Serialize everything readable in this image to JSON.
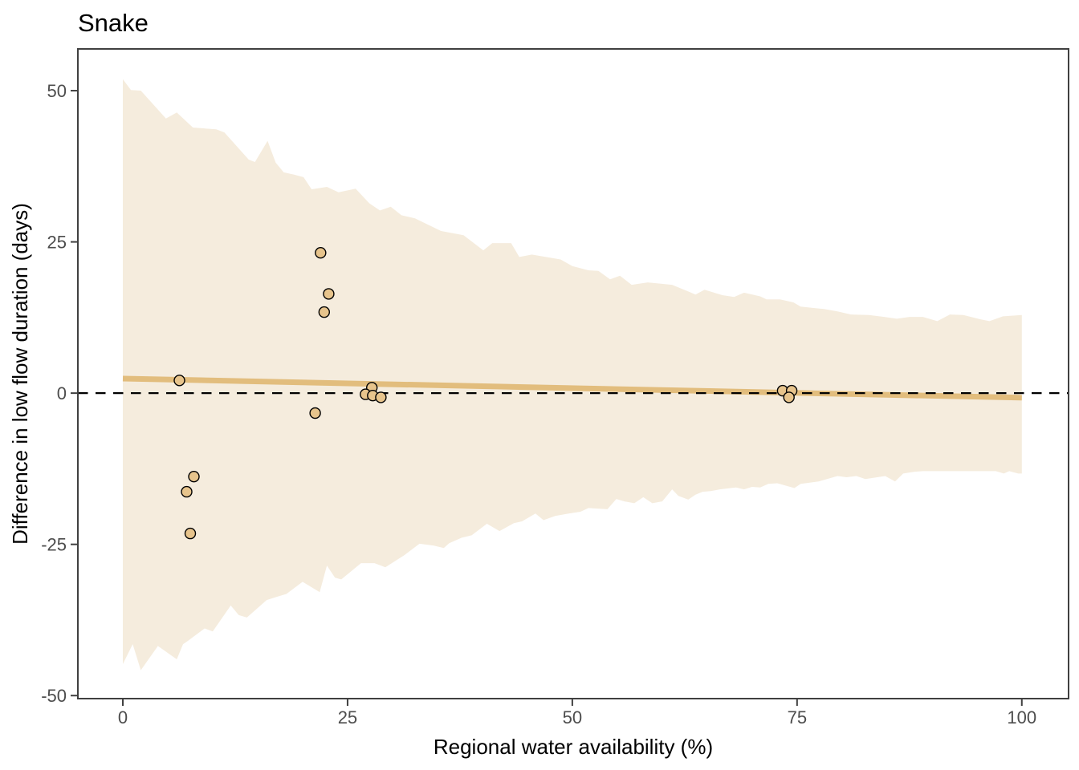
{
  "chart_data": {
    "type": "scatter",
    "title": "Snake",
    "xlabel": "Regional water availability (%)",
    "ylabel": "Difference in low flow duration (days)",
    "x_ticks": [
      0,
      25,
      50,
      75,
      100
    ],
    "y_ticks": [
      -50,
      -25,
      0,
      25,
      50
    ],
    "xlim": [
      -5,
      105.2
    ],
    "ylim": [
      -50.5,
      56.9
    ],
    "grid": "off",
    "legend": "none",
    "colors": {
      "band_fill": "#f5ecdd",
      "trend_line": "#e2bd7d",
      "point_fill": "#e7c48c",
      "point_outline": "#000000",
      "zero_line": "#000000",
      "axis_text": "#4d4d4d",
      "panel_border": "#404040"
    },
    "zero_reference_line": {
      "y": 0,
      "style": "dashed"
    },
    "trend_line": {
      "x": [
        0,
        100
      ],
      "y": [
        2.4,
        -0.75
      ]
    },
    "confidence_band": {
      "upper": [
        [
          0,
          51.9
        ],
        [
          0.9,
          50.1
        ],
        [
          2,
          50
        ],
        [
          4.8,
          45.4
        ],
        [
          6,
          46.4
        ],
        [
          7.8,
          43.9
        ],
        [
          10.4,
          43.6
        ],
        [
          11.3,
          43.1
        ],
        [
          14,
          38.6
        ],
        [
          14.7,
          38.2
        ],
        [
          16.1,
          41.7
        ],
        [
          17,
          38.1
        ],
        [
          17.9,
          36.5
        ],
        [
          19.1,
          36.1
        ],
        [
          20.1,
          35.7
        ],
        [
          21,
          33.7
        ],
        [
          22.7,
          34.1
        ],
        [
          24,
          33.2
        ],
        [
          25.9,
          33.8
        ],
        [
          27.4,
          31.4
        ],
        [
          28.6,
          30.2
        ],
        [
          29.8,
          30.8
        ],
        [
          31,
          29.4
        ],
        [
          32.5,
          28.9
        ],
        [
          35.4,
          26.8
        ],
        [
          37.9,
          26.1
        ],
        [
          40.1,
          23.6
        ],
        [
          41.1,
          24.8
        ],
        [
          43.2,
          24.8
        ],
        [
          44.1,
          22.5
        ],
        [
          45.5,
          22.9
        ],
        [
          48.7,
          22.1
        ],
        [
          50,
          21
        ],
        [
          51.8,
          20.3
        ],
        [
          52.9,
          20.2
        ],
        [
          54.2,
          18.8
        ],
        [
          55.3,
          19.4
        ],
        [
          56.6,
          17.9
        ],
        [
          58.4,
          18.3
        ],
        [
          61.1,
          17.9
        ],
        [
          62.9,
          16.8
        ],
        [
          63.7,
          16.3
        ],
        [
          64.7,
          17.1
        ],
        [
          66.7,
          16.2
        ],
        [
          68,
          15.9
        ],
        [
          69.1,
          16.6
        ],
        [
          70.9,
          16
        ],
        [
          71.6,
          15.5
        ],
        [
          73.1,
          15.5
        ],
        [
          74.6,
          15
        ],
        [
          75.4,
          14.3
        ],
        [
          78,
          13.9
        ],
        [
          79.5,
          13.5
        ],
        [
          81,
          13
        ],
        [
          83,
          12.9
        ],
        [
          84.7,
          12.6
        ],
        [
          86.1,
          12.3
        ],
        [
          87.5,
          12.6
        ],
        [
          89,
          12.6
        ],
        [
          90.6,
          11.9
        ],
        [
          92,
          13
        ],
        [
          93.5,
          12.9
        ],
        [
          95.4,
          12.2
        ],
        [
          96.4,
          11.9
        ],
        [
          97.9,
          12.7
        ],
        [
          100,
          12.9
        ]
      ],
      "lower": [
        [
          0,
          -44.8
        ],
        [
          1.1,
          -41.5
        ],
        [
          2,
          -45.8
        ],
        [
          3.9,
          -41.8
        ],
        [
          6,
          -44
        ],
        [
          6.7,
          -41.5
        ],
        [
          7.1,
          -41.1
        ],
        [
          9.1,
          -38.9
        ],
        [
          10,
          -39.4
        ],
        [
          12,
          -35.1
        ],
        [
          12.9,
          -36.7
        ],
        [
          13.8,
          -37.1
        ],
        [
          16,
          -34.2
        ],
        [
          17.3,
          -33.6
        ],
        [
          18.2,
          -33.2
        ],
        [
          20,
          -31.2
        ],
        [
          21.9,
          -32.9
        ],
        [
          22.7,
          -28.5
        ],
        [
          23.6,
          -30.5
        ],
        [
          24.3,
          -30.8
        ],
        [
          26.5,
          -28.1
        ],
        [
          28,
          -28.1
        ],
        [
          29.2,
          -28.8
        ],
        [
          31.3,
          -26.8
        ],
        [
          33,
          -24.9
        ],
        [
          34.6,
          -25.2
        ],
        [
          35.7,
          -25.6
        ],
        [
          36.3,
          -24.8
        ],
        [
          37.7,
          -23.9
        ],
        [
          38.8,
          -23.5
        ],
        [
          40.5,
          -21.6
        ],
        [
          41.9,
          -22.8
        ],
        [
          43.5,
          -21.5
        ],
        [
          44.4,
          -21.2
        ],
        [
          45.9,
          -19.9
        ],
        [
          46.8,
          -21
        ],
        [
          48.1,
          -20.3
        ],
        [
          49.6,
          -19.9
        ],
        [
          50.9,
          -19.6
        ],
        [
          51.8,
          -19
        ],
        [
          53.9,
          -19.2
        ],
        [
          54.9,
          -17.5
        ],
        [
          55.8,
          -17.9
        ],
        [
          56.9,
          -18.2
        ],
        [
          57.9,
          -17.2
        ],
        [
          58.9,
          -18.2
        ],
        [
          60,
          -17.9
        ],
        [
          61.1,
          -15.9
        ],
        [
          61.8,
          -17
        ],
        [
          62.9,
          -17.6
        ],
        [
          63.7,
          -16.8
        ],
        [
          64.5,
          -16.3
        ],
        [
          65.4,
          -16.2
        ],
        [
          66.4,
          -15.9
        ],
        [
          68.2,
          -15.6
        ],
        [
          69.1,
          -15.9
        ],
        [
          70,
          -15.5
        ],
        [
          70.9,
          -15.6
        ],
        [
          71.8,
          -15
        ],
        [
          72.8,
          -14.9
        ],
        [
          74.7,
          -15.7
        ],
        [
          75.4,
          -15
        ],
        [
          77.4,
          -14.6
        ],
        [
          79.5,
          -13.7
        ],
        [
          80.5,
          -13.9
        ],
        [
          81.6,
          -13.7
        ],
        [
          82.6,
          -14.2
        ],
        [
          84.8,
          -13.7
        ],
        [
          85.9,
          -14.6
        ],
        [
          86.8,
          -13.3
        ],
        [
          88,
          -13
        ],
        [
          89,
          -12.9
        ],
        [
          91.2,
          -12.9
        ],
        [
          93.2,
          -12.9
        ],
        [
          95.2,
          -12.9
        ],
        [
          97.1,
          -12.9
        ],
        [
          98,
          -13.3
        ],
        [
          98.6,
          -12.9
        ],
        [
          99.6,
          -13.3
        ],
        [
          100,
          -13.3
        ]
      ]
    },
    "points": [
      [
        6.3,
        2.1
      ],
      [
        22,
        23.2
      ],
      [
        22.9,
        16.4
      ],
      [
        22.4,
        13.4
      ],
      [
        21.4,
        -3.3
      ],
      [
        27.7,
        0.9
      ],
      [
        27,
        -0.2
      ],
      [
        27.8,
        -0.4
      ],
      [
        28.7,
        -0.7
      ],
      [
        73.4,
        0.4
      ],
      [
        74.4,
        0.4
      ],
      [
        74.1,
        -0.7
      ],
      [
        7.9,
        -13.8
      ],
      [
        7.1,
        -16.3
      ],
      [
        7.5,
        -23.2
      ]
    ]
  }
}
